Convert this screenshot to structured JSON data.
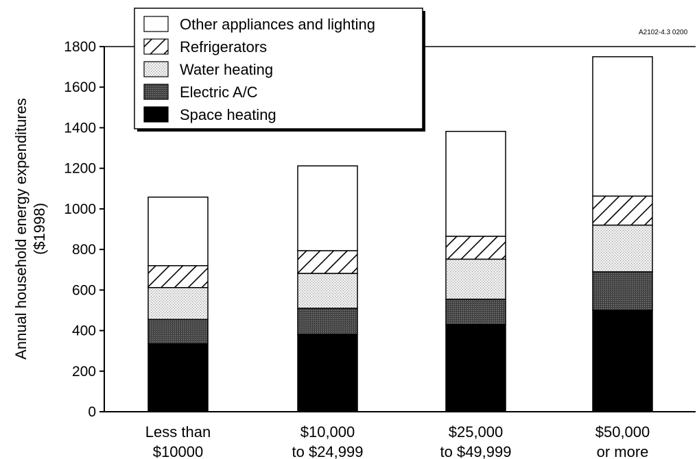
{
  "chart_data": {
    "type": "bar",
    "stacked": true,
    "categories": [
      [
        "Less than",
        "$10000"
      ],
      [
        "$10,000",
        "to $24,999"
      ],
      [
        "$25,000",
        "to $49,999"
      ],
      [
        "$50,000",
        "or more"
      ]
    ],
    "series": [
      {
        "name": "Space heating",
        "pattern": "solid-black",
        "values": [
          335,
          382,
          430,
          500
        ]
      },
      {
        "name": "Electric A/C",
        "pattern": "dark-stipple",
        "values": [
          120,
          128,
          125,
          190
        ]
      },
      {
        "name": "Water heating",
        "pattern": "light-stipple",
        "values": [
          157,
          172,
          197,
          230
        ]
      },
      {
        "name": "Refrigerators",
        "pattern": "diagonal-hatch",
        "values": [
          108,
          112,
          113,
          143
        ]
      },
      {
        "name": "Other appliances and lighting",
        "pattern": "white",
        "values": [
          338,
          418,
          517,
          687
        ]
      }
    ],
    "legend_order": [
      "Other appliances and lighting",
      "Refrigerators",
      "Water heating",
      "Electric A/C",
      "Space heating"
    ],
    "ylabel": [
      "Annual household energy expenditures",
      "($1998)"
    ],
    "xlabel": "",
    "ylim": [
      0,
      1800
    ],
    "yticks": [
      0,
      200,
      400,
      600,
      800,
      1000,
      1200,
      1400,
      1600,
      1800
    ],
    "grid": false,
    "legend_position": "top-left",
    "figure_code": "A2102-4.3  0200"
  }
}
